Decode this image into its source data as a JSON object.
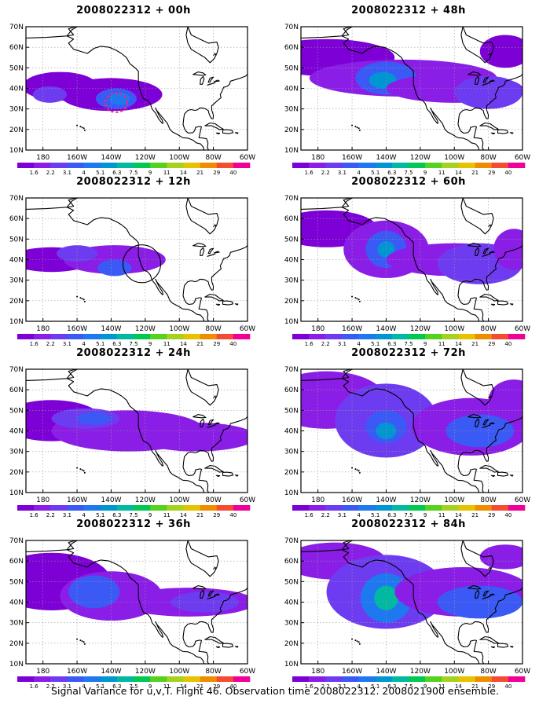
{
  "panels": [
    {
      "title": "2008022312 + 00h",
      "level": 0,
      "circle": "dashed"
    },
    {
      "title": "2008022312 + 48h",
      "level": 3
    },
    {
      "title": "2008022312 + 12h",
      "level": 1,
      "circle": "solid"
    },
    {
      "title": "2008022312 + 60h",
      "level": 4
    },
    {
      "title": "2008022312 + 24h",
      "level": 2
    },
    {
      "title": "2008022312 + 72h",
      "level": 5
    },
    {
      "title": "2008022312 + 36h",
      "level": 2
    },
    {
      "title": "2008022312 + 84h",
      "level": 6
    }
  ],
  "lat_labels": [
    "70N",
    "60N",
    "50N",
    "40N",
    "30N",
    "20N",
    "10N"
  ],
  "lon_labels": [
    "180",
    "160W",
    "140W",
    "120W",
    "100W",
    "80W",
    "60W"
  ],
  "colorbar": {
    "labels": [
      "1.6",
      "2.2",
      "3.1",
      "4",
      "5.1",
      "6.3",
      "7.5",
      "9",
      "11",
      "14",
      "21",
      "29",
      "40"
    ],
    "colors": [
      "#7d00d6",
      "#8a1ee6",
      "#6e3cf0",
      "#3b5af5",
      "#1e78f0",
      "#0096d2",
      "#00b9a0",
      "#00c850",
      "#55d21e",
      "#a5d21e",
      "#e6c300",
      "#f08c00",
      "#f54b32",
      "#f00096"
    ]
  },
  "footer": "Signal Variance for u,v,T. Flight 46. Observation time 2008022312. 2008021900 ensemble."
}
